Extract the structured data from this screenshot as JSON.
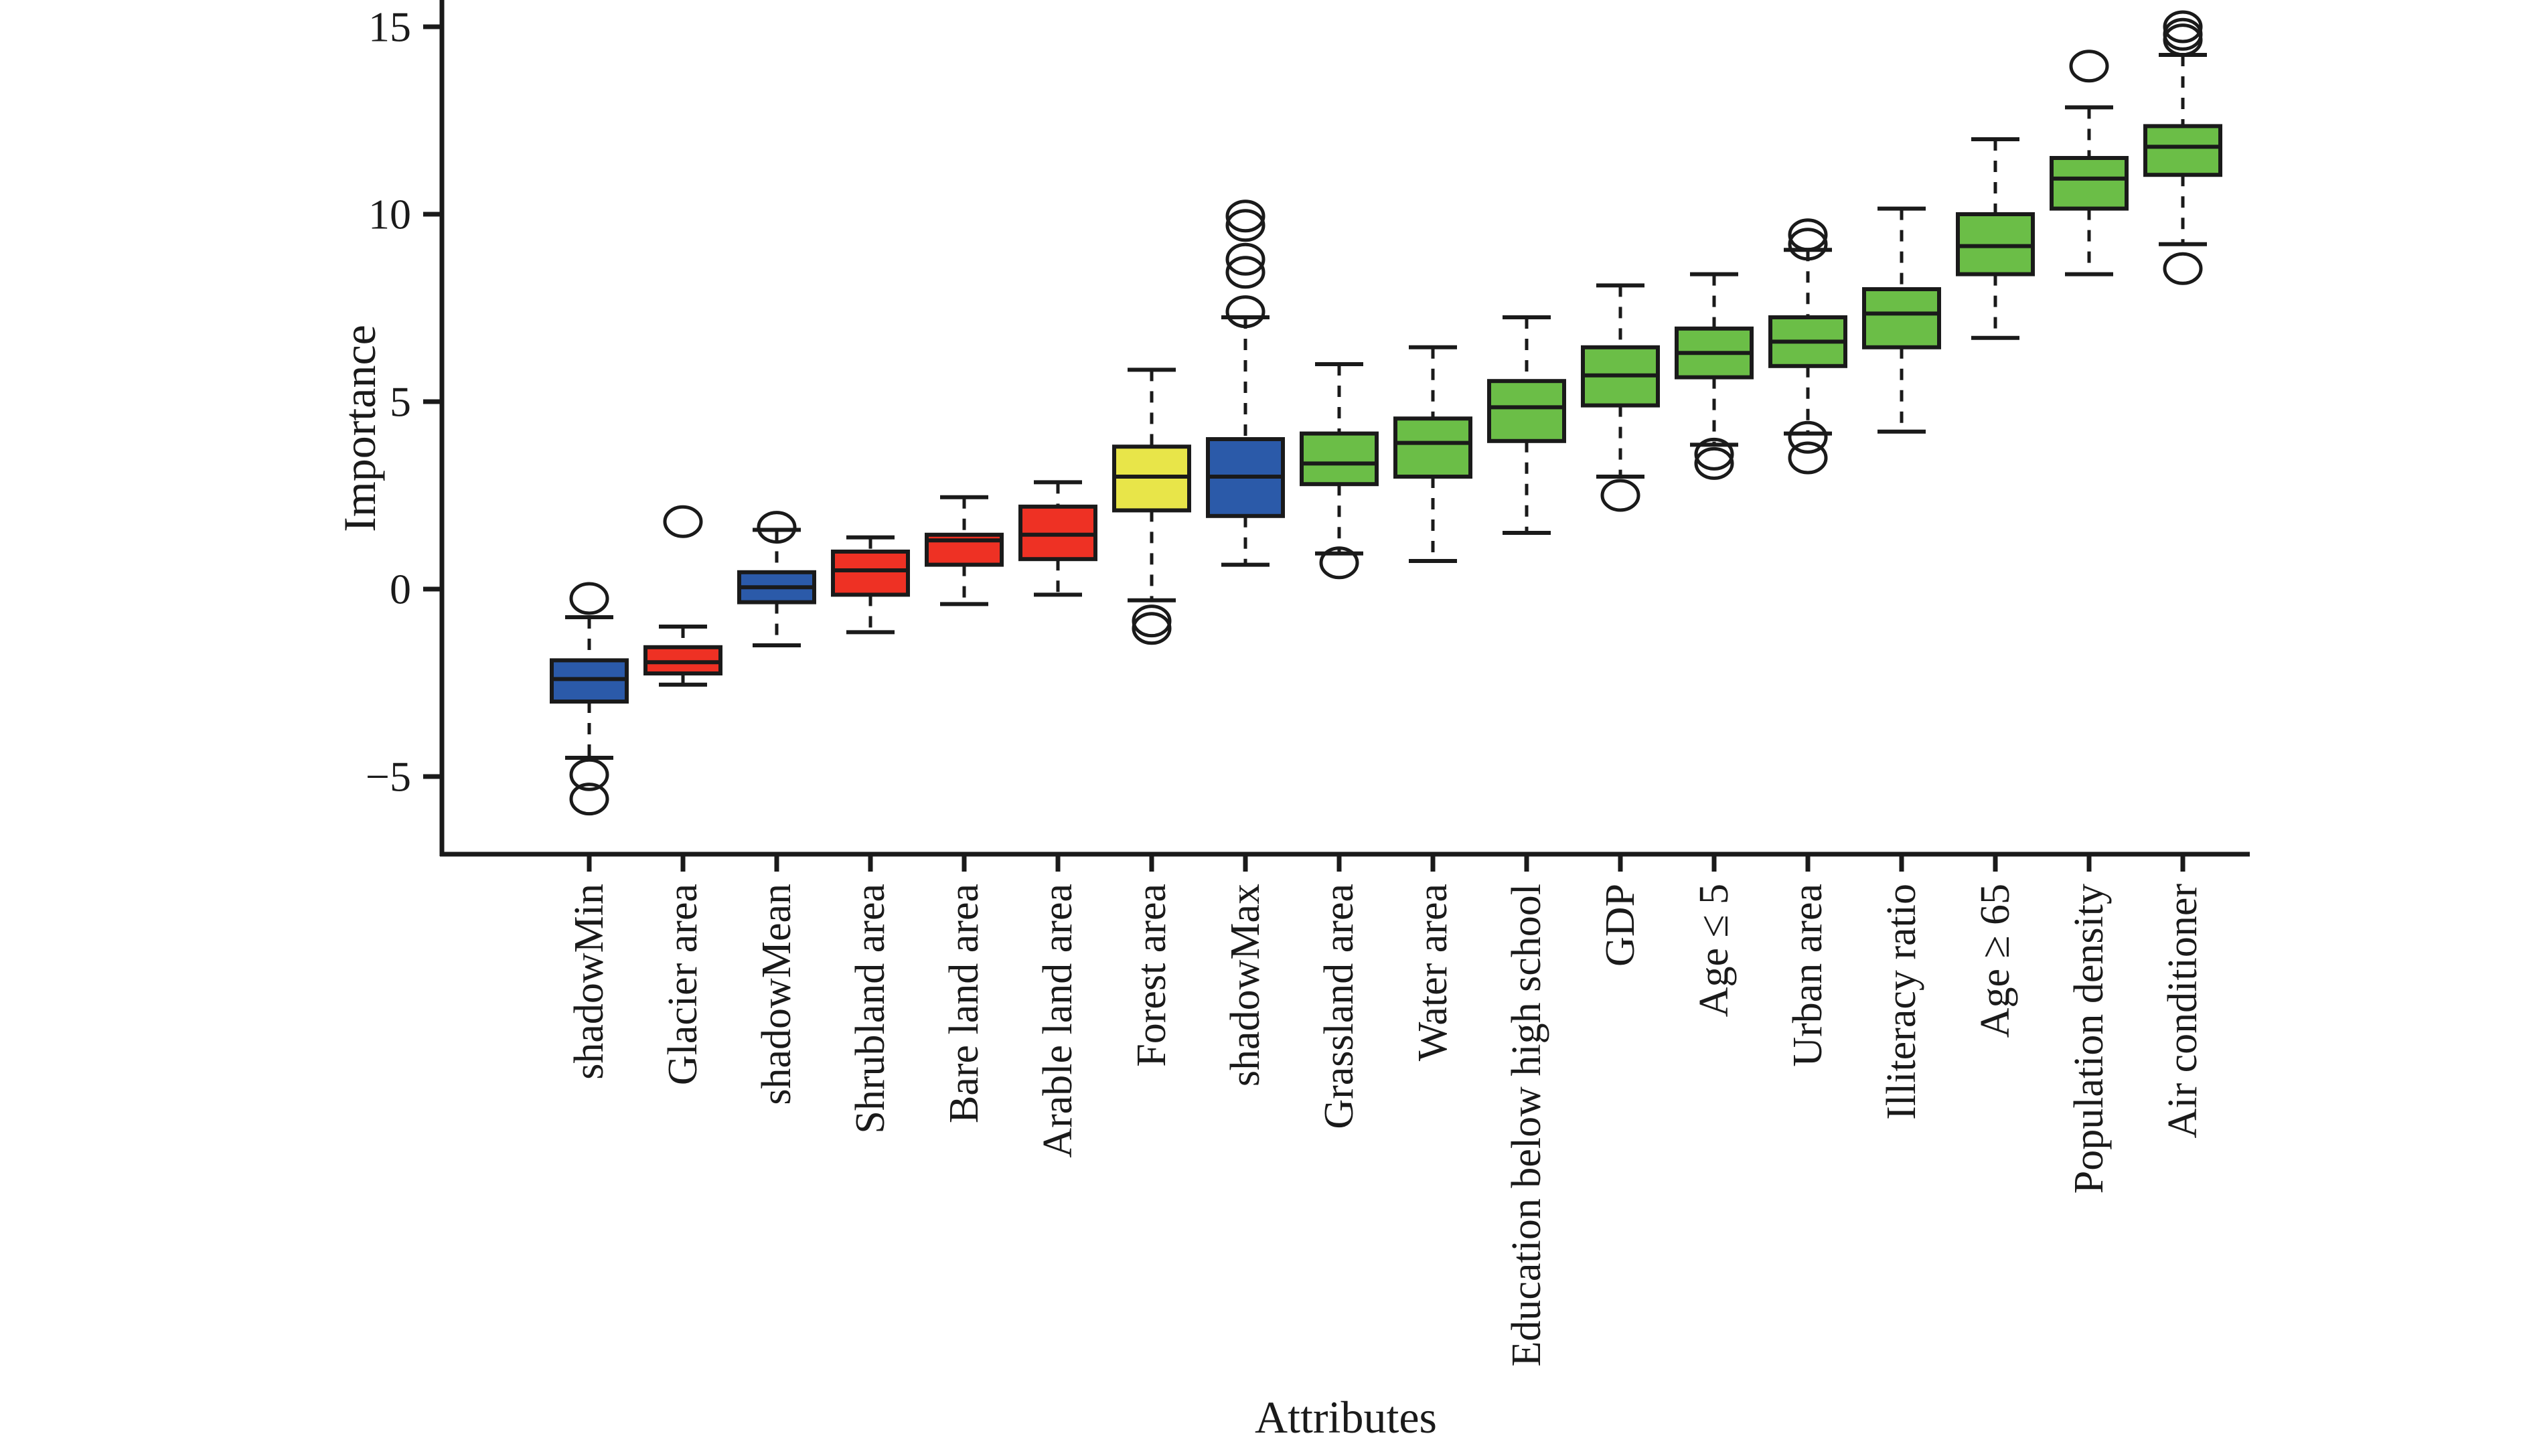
{
  "palette": {
    "blue": "#2B5AA9",
    "red": "#EE3124",
    "yellow": "#E8E549",
    "green": "#6BBE47",
    "stroke": "#1a1a1a",
    "background": "#ffffff"
  },
  "chart_data": {
    "type": "boxplot",
    "title": "",
    "xlabel": "Attributes",
    "ylabel": "Importance",
    "ylim": [
      -7.07,
      15.71
    ],
    "yticks": [
      {
        "value": 15,
        "label": "15"
      },
      {
        "value": 10,
        "label": "10"
      },
      {
        "value": 5,
        "label": "5"
      },
      {
        "value": 0,
        "label": "0"
      },
      {
        "value": -5,
        "label": "−5"
      }
    ],
    "grid": false,
    "legend": "none",
    "categories": [
      "shadowMin",
      "Glacier area",
      "shadowMean",
      "Shrubland area",
      "Bare land area",
      "Arable land area",
      "Forest area",
      "shadowMax",
      "Grassland area",
      "Water area",
      "Education below high school",
      "GDP",
      "Age ≤ 5",
      "Urban area",
      "Illiteracy ratio",
      "Age ≥ 65",
      "Population density",
      "Air conditioner"
    ],
    "series": [
      {
        "name": "shadowMin",
        "color": "blue",
        "whislo": -4.5,
        "q1": -3.0,
        "median": -2.4,
        "q3": -1.9,
        "whishi": -0.75,
        "outliers": [
          -0.25,
          -4.95,
          -5.6
        ]
      },
      {
        "name": "Glacier area",
        "color": "red",
        "whislo": -2.55,
        "q1": -2.25,
        "median": -1.95,
        "q3": -1.55,
        "whishi": -1.0,
        "outliers": [
          1.8
        ]
      },
      {
        "name": "shadowMean",
        "color": "blue",
        "whislo": -1.5,
        "q1": -0.35,
        "median": 0.05,
        "q3": 0.45,
        "whishi": 1.58,
        "outliers": [
          1.65
        ]
      },
      {
        "name": "Shrubland area",
        "color": "red",
        "whislo": -1.15,
        "q1": -0.15,
        "median": 0.5,
        "q3": 1.0,
        "whishi": 1.38,
        "outliers": []
      },
      {
        "name": "Bare land area",
        "color": "red",
        "whislo": -0.4,
        "q1": 0.65,
        "median": 1.3,
        "q3": 1.45,
        "whishi": 2.45,
        "outliers": []
      },
      {
        "name": "Arable land area",
        "color": "red",
        "whislo": -0.15,
        "q1": 0.8,
        "median": 1.45,
        "q3": 2.2,
        "whishi": 2.85,
        "outliers": []
      },
      {
        "name": "Forest area",
        "color": "yellow",
        "whislo": -0.3,
        "q1": 2.1,
        "median": 3.0,
        "q3": 3.8,
        "whishi": 5.85,
        "outliers": [
          -0.85,
          -1.05
        ]
      },
      {
        "name": "shadowMax",
        "color": "blue",
        "whislo": 0.65,
        "q1": 1.95,
        "median": 3.0,
        "q3": 4.0,
        "whishi": 7.25,
        "outliers": [
          7.4,
          8.45,
          8.8,
          9.7,
          9.95
        ]
      },
      {
        "name": "Grassland area",
        "color": "green",
        "whislo": 0.95,
        "q1": 2.8,
        "median": 3.35,
        "q3": 4.15,
        "whishi": 6.0,
        "outliers": [
          0.7
        ]
      },
      {
        "name": "Water area",
        "color": "green",
        "whislo": 0.75,
        "q1": 3.0,
        "median": 3.9,
        "q3": 4.55,
        "whishi": 6.45,
        "outliers": []
      },
      {
        "name": "Education below high school",
        "color": "green",
        "whislo": 1.5,
        "q1": 3.95,
        "median": 4.85,
        "q3": 5.55,
        "whishi": 7.25,
        "outliers": []
      },
      {
        "name": "GDP",
        "color": "green",
        "whislo": 3.0,
        "q1": 4.9,
        "median": 5.7,
        "q3": 6.45,
        "whishi": 8.1,
        "outliers": [
          2.5
        ]
      },
      {
        "name": "Age ≤ 5",
        "color": "green",
        "whislo": 3.85,
        "q1": 5.65,
        "median": 6.3,
        "q3": 6.95,
        "whishi": 8.4,
        "outliers": [
          3.6,
          3.35
        ]
      },
      {
        "name": "Urban area",
        "color": "green",
        "whislo": 4.15,
        "q1": 5.95,
        "median": 6.6,
        "q3": 7.25,
        "whishi": 9.05,
        "outliers": [
          9.45,
          9.2,
          4.05,
          3.5
        ]
      },
      {
        "name": "Illiteracy ratio",
        "color": "green",
        "whislo": 4.2,
        "q1": 6.45,
        "median": 7.35,
        "q3": 8.0,
        "whishi": 10.15,
        "outliers": []
      },
      {
        "name": "Age ≥ 65",
        "color": "green",
        "whislo": 6.7,
        "q1": 8.4,
        "median": 9.15,
        "q3": 10.0,
        "whishi": 12.0,
        "outliers": []
      },
      {
        "name": "Population density",
        "color": "green",
        "whislo": 8.4,
        "q1": 10.15,
        "median": 10.95,
        "q3": 11.5,
        "whishi": 12.85,
        "outliers": [
          13.95
        ]
      },
      {
        "name": "Air conditioner",
        "color": "green",
        "whislo": 9.2,
        "q1": 11.05,
        "median": 11.8,
        "q3": 12.35,
        "whishi": 14.25,
        "outliers": [
          15.0,
          14.8,
          14.65,
          8.55
        ]
      }
    ]
  }
}
